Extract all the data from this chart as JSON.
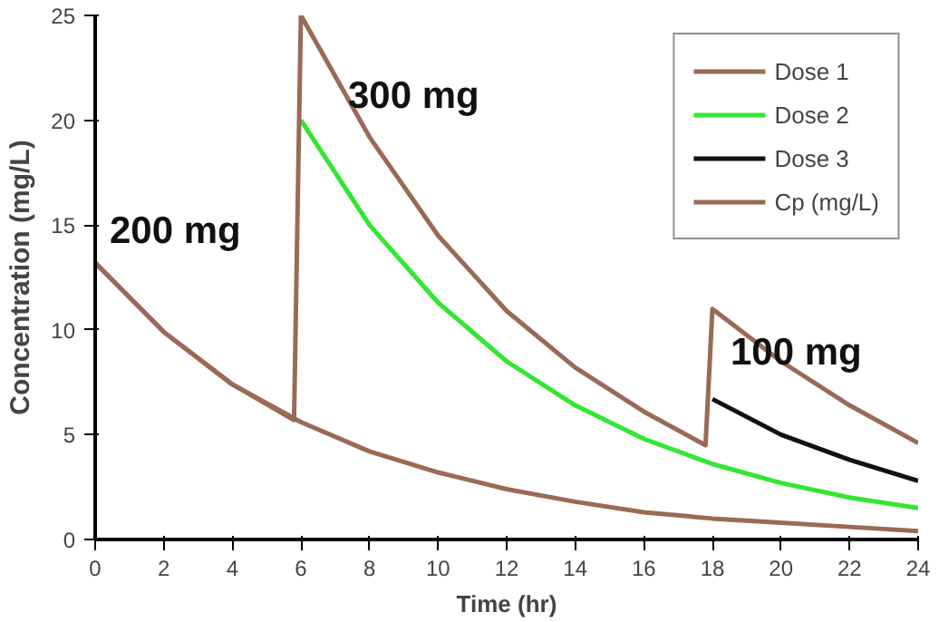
{
  "chart_data": {
    "type": "line",
    "xlabel": "Time (hr)",
    "ylabel": "Concentration (mg/L)",
    "xlim": [
      0,
      24
    ],
    "ylim": [
      0,
      25
    ],
    "xticks": [
      0,
      2,
      4,
      6,
      8,
      10,
      12,
      14,
      16,
      18,
      20,
      22,
      24
    ],
    "yticks": [
      0,
      5,
      10,
      15,
      20,
      25
    ],
    "grid": false,
    "legend": "top right",
    "marker": "none",
    "line_style": "solid",
    "series": [
      {
        "name": "Dose 1",
        "color": "#9a6a55",
        "x": [
          0,
          2,
          4,
          6,
          8,
          10,
          12,
          14,
          16,
          18,
          20,
          22,
          24
        ],
        "values": [
          13.2,
          9.9,
          7.4,
          5.6,
          4.2,
          3.2,
          2.4,
          1.8,
          1.3,
          1.0,
          0.8,
          0.6,
          0.4
        ]
      },
      {
        "name": "Dose 2",
        "color": "#33e633",
        "x": [
          6,
          8,
          10,
          12,
          14,
          16,
          18,
          20,
          22,
          24
        ],
        "values": [
          20,
          15.0,
          11.3,
          8.5,
          6.4,
          4.8,
          3.6,
          2.7,
          2.0,
          1.5
        ]
      },
      {
        "name": "Dose 3",
        "color": "#111111",
        "x": [
          18,
          20,
          22,
          24
        ],
        "values": [
          6.7,
          5.0,
          3.8,
          2.8
        ]
      },
      {
        "name": "Cp (mg/L)",
        "color": "#9a6a55",
        "x": [
          0,
          2,
          4,
          5.8,
          6,
          8,
          10,
          12,
          14,
          16,
          17.8,
          18,
          20,
          22,
          24
        ],
        "values": [
          13.2,
          9.9,
          7.4,
          5.7,
          25,
          19.2,
          14.5,
          10.9,
          8.2,
          6.1,
          4.5,
          11.0,
          8.5,
          6.4,
          4.6
        ]
      }
    ],
    "annotations": [
      "200 mg",
      "300 mg",
      "100 mg"
    ]
  }
}
